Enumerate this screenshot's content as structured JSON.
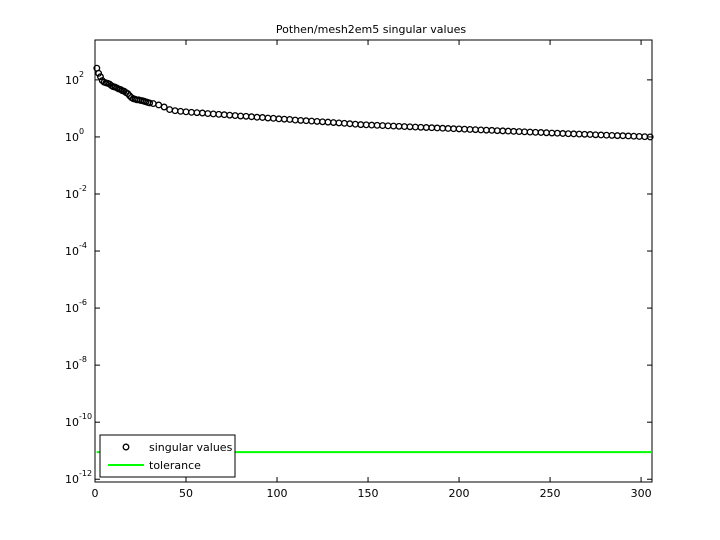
{
  "chart_data": {
    "type": "line",
    "title": "Pothen/mesh2em5 singular values",
    "xlim": [
      0,
      306
    ],
    "xticks": [
      0,
      50,
      100,
      150,
      200,
      250,
      300
    ],
    "ylim": [
      8e-13,
      2500
    ],
    "log_y": true,
    "yticks": [
      {
        "value": 1e-12,
        "label": "10^-12"
      },
      {
        "value": 1e-10,
        "label": "10^-10"
      },
      {
        "value": 1e-08,
        "label": "10^-8"
      },
      {
        "value": 1e-06,
        "label": "10^-6"
      },
      {
        "value": 0.0001,
        "label": "10^-4"
      },
      {
        "value": 0.01,
        "label": "10^-2"
      },
      {
        "value": 1,
        "label": "10^0"
      },
      {
        "value": 100,
        "label": "10^2"
      }
    ],
    "legend": "lower left",
    "series": [
      {
        "name": "singular values",
        "color": "#000000",
        "marker": "circle",
        "x": [
          1,
          2,
          3,
          4,
          5,
          6,
          7,
          8,
          9,
          10,
          11,
          12,
          13,
          14,
          15,
          16,
          17,
          18,
          19,
          20,
          21,
          22,
          23,
          24,
          25,
          26,
          27,
          28,
          29,
          30,
          32,
          35,
          38,
          41,
          44,
          47,
          50,
          53,
          56,
          59,
          62,
          65,
          68,
          71,
          74,
          77,
          80,
          83,
          86,
          89,
          92,
          95,
          98,
          101,
          104,
          107,
          110,
          113,
          116,
          119,
          122,
          125,
          128,
          131,
          134,
          137,
          140,
          143,
          146,
          149,
          152,
          155,
          158,
          161,
          164,
          167,
          170,
          173,
          176,
          179,
          182,
          185,
          188,
          191,
          194,
          197,
          200,
          203,
          206,
          209,
          212,
          215,
          218,
          221,
          224,
          227,
          230,
          233,
          236,
          239,
          242,
          245,
          248,
          251,
          254,
          257,
          260,
          263,
          266,
          269,
          272,
          275,
          278,
          281,
          284,
          287,
          290,
          293,
          296,
          299,
          302,
          305
        ],
        "values": [
          257,
          170,
          129,
          95,
          83,
          79,
          76,
          71,
          63,
          58,
          56,
          52,
          48,
          46,
          42,
          40,
          36,
          33,
          28,
          24,
          22,
          21,
          20,
          20,
          19,
          18.6,
          17.8,
          17,
          16.2,
          15.5,
          14.8,
          13.2,
          11.2,
          9.1,
          8.3,
          7.9,
          7.6,
          7.3,
          7.1,
          6.9,
          6.6,
          6.4,
          6.2,
          6.0,
          5.8,
          5.6,
          5.4,
          5.3,
          5.1,
          4.9,
          4.8,
          4.6,
          4.5,
          4.3,
          4.2,
          4.1,
          3.9,
          3.8,
          3.7,
          3.6,
          3.5,
          3.4,
          3.3,
          3.2,
          3.1,
          3.0,
          2.9,
          2.8,
          2.7,
          2.66,
          2.6,
          2.55,
          2.5,
          2.45,
          2.4,
          2.36,
          2.31,
          2.27,
          2.22,
          2.18,
          2.14,
          2.1,
          2.06,
          2.02,
          1.98,
          1.94,
          1.91,
          1.87,
          1.83,
          1.8,
          1.76,
          1.73,
          1.7,
          1.66,
          1.63,
          1.6,
          1.57,
          1.54,
          1.51,
          1.48,
          1.45,
          1.43,
          1.4,
          1.37,
          1.35,
          1.32,
          1.3,
          1.28,
          1.26,
          1.24,
          1.22,
          1.19,
          1.17,
          1.15,
          1.13,
          1.11,
          1.1,
          1.08,
          1.06,
          1.04,
          1.02,
          1.0
        ]
      },
      {
        "name": "tolerance",
        "color": "#00ff00",
        "marker": "none",
        "x": [
          1,
          306
        ],
        "values": [
          8.9e-12,
          8.9e-12
        ]
      }
    ]
  }
}
